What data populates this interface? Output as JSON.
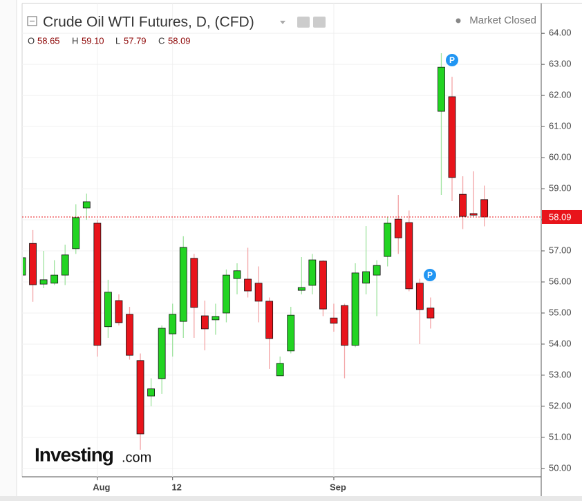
{
  "chart_data": {
    "type": "candlestick",
    "title": "Crude Oil WTI Futures, D, (CFD)",
    "status": "Market Closed",
    "ohlc_header": {
      "open_label": "O",
      "open": 58.65,
      "high_label": "H",
      "high": {
        "value": 59.1,
        "label": "59.10"
      },
      "low_label": "L",
      "low": 57.79,
      "close_label": "C",
      "close": 58.09
    },
    "categories": [
      null,
      null,
      null,
      null,
      null,
      null,
      null,
      "Aug",
      null,
      null,
      null,
      null,
      null,
      null,
      "12",
      null,
      null,
      null,
      null,
      null,
      null,
      null,
      null,
      null,
      null,
      null,
      null,
      null,
      null,
      "Sep",
      null,
      null,
      null,
      null,
      null,
      null,
      null,
      null,
      null,
      null,
      null,
      null,
      null,
      null
    ],
    "open": [
      56.22,
      57.24,
      55.93,
      55.96,
      56.22,
      57.07,
      58.38,
      57.89,
      54.56,
      55.4,
      54.96,
      53.47,
      52.33,
      52.89,
      54.33,
      54.73,
      56.76,
      54.91,
      54.78,
      55.0,
      56.11,
      56.09,
      55.96,
      55.38,
      52.98,
      53.78,
      55.73,
      55.89,
      56.67,
      54.84,
      55.24,
      53.96,
      55.96,
      56.22,
      56.82,
      58.02,
      57.91,
      55.96,
      55.16,
      61.49,
      61.96,
      58.82,
      58.2,
      58.65
    ],
    "high": [
      56.9,
      57.67,
      57.0,
      56.7,
      57.2,
      58.5,
      58.84,
      58.0,
      56.07,
      55.6,
      55.2,
      53.7,
      52.9,
      54.6,
      55.3,
      57.47,
      56.9,
      55.4,
      55.3,
      56.4,
      56.6,
      57.1,
      56.5,
      55.5,
      53.6,
      55.2,
      56.8,
      56.9,
      56.7,
      55.3,
      55.3,
      56.6,
      57.8,
      56.7,
      58.1,
      58.8,
      58.3,
      56.1,
      55.5,
      63.36,
      62.6,
      59.4,
      59.56,
      59.1
    ],
    "low": [
      56.1,
      55.36,
      55.8,
      55.9,
      55.9,
      56.9,
      58.0,
      53.6,
      54.2,
      54.6,
      53.5,
      50.6,
      52.0,
      52.4,
      53.6,
      54.2,
      54.2,
      53.8,
      54.3,
      54.7,
      55.6,
      55.5,
      54.7,
      53.2,
      53.0,
      53.7,
      55.6,
      55.6,
      54.9,
      54.4,
      52.9,
      53.9,
      55.6,
      54.9,
      56.5,
      56.9,
      55.7,
      54.0,
      54.5,
      58.8,
      58.6,
      57.7,
      58.1,
      57.79
    ],
    "close": [
      56.78,
      55.91,
      56.07,
      56.22,
      56.87,
      58.07,
      58.58,
      53.96,
      55.67,
      54.69,
      53.64,
      51.11,
      52.56,
      54.51,
      54.96,
      57.11,
      55.18,
      54.49,
      54.89,
      56.22,
      56.36,
      55.71,
      55.38,
      54.18,
      53.38,
      54.93,
      55.82,
      56.71,
      55.13,
      54.67,
      53.96,
      56.29,
      56.33,
      56.53,
      57.89,
      57.42,
      55.78,
      55.11,
      54.84,
      62.91,
      59.36,
      58.11,
      58.15,
      58.09
    ],
    "up_color": "#22d422",
    "down_color": "#e8141b",
    "ylim": [
      49.73,
      64.96
    ],
    "yticks": [
      {
        "value": 50,
        "label": "50.00"
      },
      {
        "value": 51,
        "label": "51.00"
      },
      {
        "value": 52,
        "label": "52.00"
      },
      {
        "value": 53,
        "label": "53.00"
      },
      {
        "value": 54,
        "label": "54.00"
      },
      {
        "value": 55,
        "label": "55.00"
      },
      {
        "value": 56,
        "label": "56.00"
      },
      {
        "value": 57,
        "label": "57.00"
      },
      {
        "value": 58,
        "label": "58.00"
      },
      {
        "value": 59,
        "label": "59.00"
      },
      {
        "value": 60,
        "label": "60.00"
      },
      {
        "value": 61,
        "label": "61.00"
      },
      {
        "value": 62,
        "label": "62.00"
      },
      {
        "value": 63,
        "label": "63.00"
      },
      {
        "value": 64,
        "label": "64.00"
      }
    ],
    "grid": true,
    "price_line": {
      "value": 58.09,
      "label": "58.09"
    },
    "annotations": [
      "P",
      "P"
    ],
    "logo": {
      "text": "Investing",
      "suffix": ".com"
    }
  }
}
